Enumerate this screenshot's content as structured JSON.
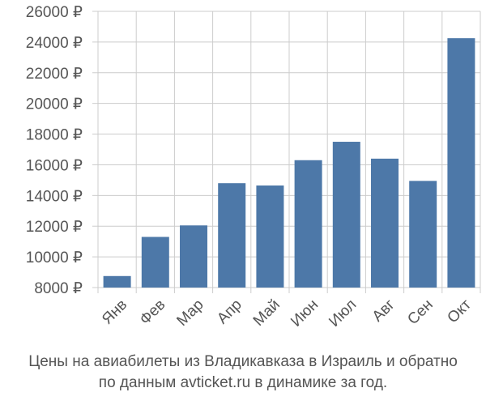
{
  "chart_data": {
    "type": "bar",
    "categories": [
      "Янв",
      "Фев",
      "Мар",
      "Апр",
      "Май",
      "Июн",
      "Июл",
      "Авг",
      "Сен",
      "Окт"
    ],
    "values": [
      8750,
      11300,
      12050,
      14800,
      14650,
      16300,
      17500,
      16400,
      14950,
      24250
    ],
    "ylim": [
      8000,
      26000
    ],
    "yticks": [
      8000,
      10000,
      12000,
      14000,
      16000,
      18000,
      20000,
      22000,
      24000,
      26000
    ],
    "ytick_labels": [
      "8000 ₽",
      "10000 ₽",
      "12000 ₽",
      "14000 ₽",
      "16000 ₽",
      "18000 ₽",
      "20000 ₽",
      "22000 ₽",
      "24000 ₽",
      "26000 ₽"
    ],
    "grid": true,
    "bar_color": "#4d78a8",
    "grid_color": "#cccccc"
  },
  "caption": {
    "line1": "Цены на авиабилеты из Владикавказа в Израиль и обратно",
    "line2": "по данным avticket.ru в динамике за год."
  }
}
